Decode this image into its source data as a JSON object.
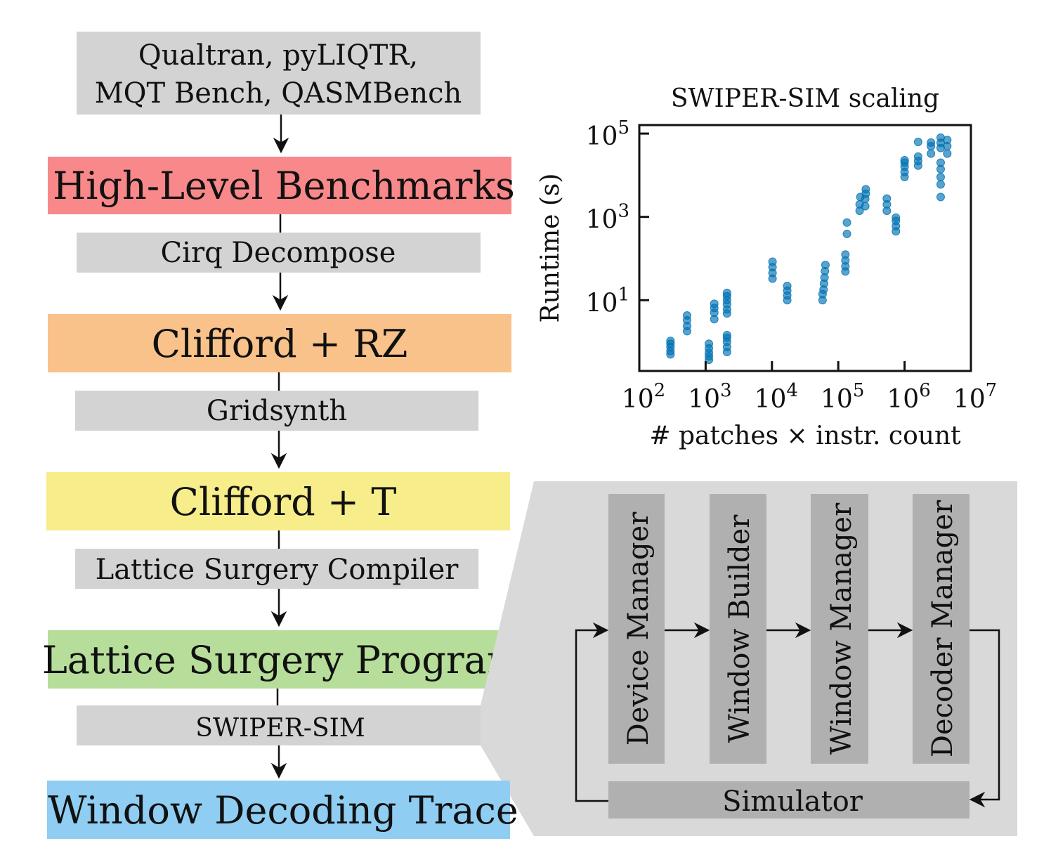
{
  "pipeline": {
    "sources": {
      "line1": "Qualtran, pyLIQTR,",
      "line2": "MQT Bench, QASMBench"
    },
    "stages": [
      {
        "label": "High-Level Benchmarks",
        "color": "#f8888a"
      },
      {
        "label": "Clifford + RZ",
        "color": "#f9c28a"
      },
      {
        "label": "Clifford + T",
        "color": "#f7ee8b"
      },
      {
        "label": "Lattice Surgery Program",
        "color": "#b6de9a"
      },
      {
        "label": "Window Decoding Trace",
        "color": "#90cdf2"
      }
    ],
    "steps": [
      "Cirq Decompose",
      "Gridsynth",
      "Lattice Surgery Compiler",
      "SWIPER-SIM"
    ]
  },
  "simulator_detail": {
    "modules": [
      "Device Manager",
      "Window Builder",
      "Window Manager",
      "Decoder Manager"
    ],
    "simulator": "Simulator"
  },
  "chart_data": {
    "type": "scatter",
    "title": "SWIPER-SIM scaling",
    "xlabel": "# patches × instr. count",
    "ylabel": "Runtime (s)",
    "xscale": "log",
    "yscale": "log",
    "xlim": [
      100,
      10000000
    ],
    "ylim": [
      0.2,
      160000
    ],
    "xticks": [
      {
        "base": "10",
        "exp": "2"
      },
      {
        "base": "10",
        "exp": "3"
      },
      {
        "base": "10",
        "exp": "4"
      },
      {
        "base": "10",
        "exp": "5"
      },
      {
        "base": "10",
        "exp": "6"
      },
      {
        "base": "10",
        "exp": "7"
      }
    ],
    "yticks": [
      {
        "base": "10",
        "exp": "1"
      },
      {
        "base": "10",
        "exp": "3"
      },
      {
        "base": "10",
        "exp": "5"
      }
    ],
    "color": "#0072b2",
    "points": [
      [
        295,
        0.5
      ],
      [
        295,
        0.6
      ],
      [
        295,
        0.75
      ],
      [
        295,
        0.9
      ],
      [
        295,
        1.05
      ],
      [
        525,
        1.8
      ],
      [
        525,
        2.4
      ],
      [
        525,
        3.3
      ],
      [
        525,
        4.3
      ],
      [
        1120,
        0.37
      ],
      [
        1120,
        0.45
      ],
      [
        1120,
        0.55
      ],
      [
        1120,
        0.7
      ],
      [
        1120,
        0.9
      ],
      [
        1350,
        3.5
      ],
      [
        1350,
        5
      ],
      [
        1350,
        6.5
      ],
      [
        1350,
        8.2
      ],
      [
        2100,
        4.8
      ],
      [
        2100,
        6
      ],
      [
        2100,
        8
      ],
      [
        2100,
        10
      ],
      [
        2100,
        12.5
      ],
      [
        2100,
        15
      ],
      [
        2100,
        0.57
      ],
      [
        2100,
        0.75
      ],
      [
        2100,
        1.0
      ],
      [
        2100,
        1.25
      ],
      [
        2100,
        1.45
      ],
      [
        10200,
        33
      ],
      [
        10200,
        45
      ],
      [
        10200,
        62
      ],
      [
        10200,
        84
      ],
      [
        17000,
        10
      ],
      [
        17000,
        13
      ],
      [
        17000,
        17
      ],
      [
        17000,
        22
      ],
      [
        58000,
        10
      ],
      [
        58000,
        14
      ],
      [
        60000,
        18
      ],
      [
        61000,
        25
      ],
      [
        62000,
        35
      ],
      [
        63000,
        50
      ],
      [
        64000,
        70
      ],
      [
        128000,
        49
      ],
      [
        128000,
        65
      ],
      [
        128000,
        90
      ],
      [
        128000,
        125
      ],
      [
        135000,
        390
      ],
      [
        135000,
        730
      ],
      [
        210000,
        1400
      ],
      [
        210000,
        2000
      ],
      [
        215000,
        3000
      ],
      [
        255000,
        1800
      ],
      [
        255000,
        2700
      ],
      [
        260000,
        3600
      ],
      [
        260000,
        4600
      ],
      [
        540000,
        1400
      ],
      [
        540000,
        2000
      ],
      [
        540000,
        2750
      ],
      [
        740000,
        450
      ],
      [
        740000,
        600
      ],
      [
        740000,
        800
      ],
      [
        740000,
        960
      ],
      [
        1000000,
        9100
      ],
      [
        1000000,
        12000
      ],
      [
        1000000,
        16000
      ],
      [
        1000000,
        20000
      ],
      [
        1000000,
        23000
      ],
      [
        1600000,
        17000
      ],
      [
        1600000,
        22000
      ],
      [
        1600000,
        28000
      ],
      [
        1600000,
        63000
      ],
      [
        2500000,
        33000
      ],
      [
        2500000,
        50000
      ],
      [
        2500000,
        61000
      ],
      [
        3500000,
        3000
      ],
      [
        3500000,
        6000
      ],
      [
        3500000,
        9000
      ],
      [
        3500000,
        14000
      ],
      [
        3500000,
        20000
      ],
      [
        3500000,
        45000
      ],
      [
        3500000,
        60000
      ],
      [
        3500000,
        80000
      ],
      [
        4400000,
        33000
      ],
      [
        4400000,
        50000
      ],
      [
        4400000,
        70000
      ]
    ]
  }
}
